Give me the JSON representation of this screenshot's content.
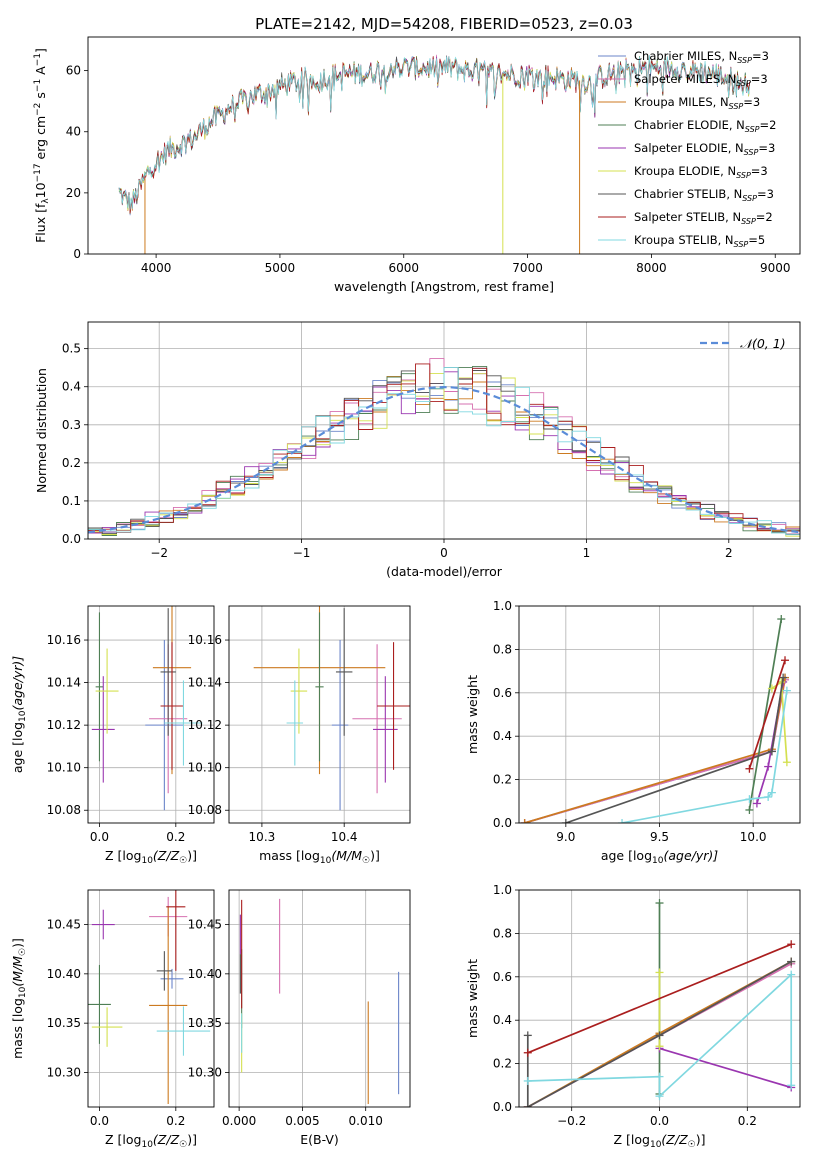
{
  "title": "PLATE=2142, MJD=54208, FIBERID=0523, z=0.03",
  "colors": {
    "Chabrier MILES": "#6b85c9",
    "Salpeter MILES": "#d670b0",
    "Kroupa MILES": "#cc7a20",
    "Chabrier ELODIE": "#4f7f55",
    "Salpeter ELODIE": "#9a36b0",
    "Kroupa ELODIE": "#d4e050",
    "Chabrier STELIB": "#555555",
    "Salpeter STELIB": "#aa1e1e",
    "Kroupa STELIB": "#80d8e0",
    "gauss": "#5a8cd8",
    "grid": "#b0b0b0"
  },
  "chart_data": [
    {
      "id": "spectrum",
      "type": "line",
      "title": "PLATE=2142, MJD=54208, FIBERID=0523, z=0.03",
      "xlabel": "wavelength [Angstrom, rest frame]",
      "ylabel_main": "Flux [f",
      "ylabel_sub": "λ",
      "ylabel_rest": "10",
      "ylabel_sup1": "−17",
      "ylabel_unit": " erg cm",
      "ylabel_sup2": "−2",
      "ylabel_unit2": " s",
      "ylabel_sup3": "−1",
      "ylabel_unit3": " A",
      "ylabel_sup4": "−1",
      "ylabel_end": "]",
      "xlim": [
        3450,
        9200
      ],
      "ylim": [
        0,
        71
      ],
      "xticks": [
        "4000",
        "5000",
        "6000",
        "7000",
        "8000",
        "9000"
      ],
      "xtick_values": [
        4000,
        5000,
        6000,
        7000,
        8000,
        9000
      ],
      "yticks": [
        "0",
        "20",
        "40",
        "60"
      ],
      "ytick_values": [
        0,
        20,
        40,
        60
      ],
      "grid": false,
      "legend_position": "top-right",
      "legend": [
        {
          "name": "Chabrier MILES",
          "n": "3"
        },
        {
          "name": "Salpeter MILES",
          "n": "3"
        },
        {
          "name": "Kroupa MILES",
          "n": "3"
        },
        {
          "name": "Chabrier ELODIE",
          "n": "2"
        },
        {
          "name": "Salpeter ELODIE",
          "n": "3"
        },
        {
          "name": "Kroupa ELODIE",
          "n": "3"
        },
        {
          "name": "Chabrier STELIB",
          "n": "3"
        },
        {
          "name": "Salpeter STELIB",
          "n": "2"
        },
        {
          "name": "Kroupa STELIB",
          "n": "5"
        }
      ],
      "legend_n_prefix": ", N",
      "legend_n_sub": "SSP",
      "legend_n_eq": "=",
      "envelope": {
        "x": [
          3700,
          3750,
          3800,
          3850,
          3900,
          3950,
          4000,
          4100,
          4200,
          4300,
          4400,
          4500,
          4600,
          4700,
          4800,
          4900,
          5000,
          5100,
          5200,
          5300,
          5400,
          5500,
          5600,
          5700,
          5800,
          5900,
          6000,
          6100,
          6200,
          6300,
          6400,
          6500,
          6600,
          6700,
          6800,
          6900,
          7000,
          7100,
          7200,
          7300,
          7400,
          7500,
          7600,
          7700,
          7800,
          7900,
          8000,
          8100,
          8200,
          8300,
          8400,
          8500,
          8600,
          8700,
          8800
        ],
        "y": [
          20,
          18,
          16,
          20,
          24,
          28,
          30,
          34,
          36,
          38,
          42,
          45,
          48,
          50,
          52,
          53,
          55,
          56,
          57,
          57,
          58,
          59,
          59,
          59,
          60,
          61,
          61,
          61,
          61,
          61,
          61,
          60,
          60,
          59,
          59,
          59,
          59,
          58,
          58,
          57,
          57,
          56,
          58,
          59,
          60,
          61,
          61,
          61,
          61,
          60,
          60,
          59,
          58,
          56,
          55
        ]
      },
      "dropouts": [
        {
          "x": 3910,
          "color_of": "Kroupa MILES"
        },
        {
          "x": 6800,
          "color_of": "Kroupa ELODIE"
        },
        {
          "x": 7420,
          "color_of": "Kroupa MILES"
        }
      ]
    },
    {
      "id": "residuals",
      "type": "histogram",
      "xlabel": "(data-model)/error",
      "ylabel": "Normed distribution",
      "xlim": [
        -2.5,
        2.5
      ],
      "ylim": [
        0,
        0.57
      ],
      "xticks": [
        "−2",
        "−1",
        "0",
        "1",
        "2"
      ],
      "xtick_values": [
        -2,
        -1,
        0,
        1,
        2
      ],
      "yticks": [
        "0.0",
        "0.1",
        "0.2",
        "0.3",
        "0.4",
        "0.5"
      ],
      "ytick_values": [
        0,
        0.1,
        0.2,
        0.3,
        0.4,
        0.5
      ],
      "grid": true,
      "legend_position": "top-right",
      "legend_label": "𝒩(0, 1)",
      "bins": 50
    },
    {
      "id": "age-vs-z",
      "type": "scatter",
      "xlabel": "Z [log",
      "xlabel_sub": "10",
      "xlabel_end": "(Z/Z",
      "xlabel_sun": "☉",
      "xlabel_close": ")]",
      "ylabel": "age  [log",
      "ylabel_sub": "10",
      "ylabel_end": "(age/yr)]",
      "xlim": [
        -0.03,
        0.3
      ],
      "ylim": [
        10.074,
        10.176
      ],
      "xticks": [
        "0.0",
        "0.2"
      ],
      "xtick_values": [
        0.0,
        0.2
      ],
      "yticks": [
        "10.08",
        "10.10",
        "10.12",
        "10.14",
        "10.16"
      ],
      "ytick_values": [
        10.08,
        10.1,
        10.12,
        10.14,
        10.16
      ],
      "grid": true,
      "points": [
        {
          "model": "Chabrier MILES",
          "x": 0.17,
          "y": 10.12,
          "xerr": 0.05,
          "yerr": 0.04
        },
        {
          "model": "Salpeter MILES",
          "x": 0.18,
          "y": 10.123,
          "xerr": 0.05,
          "yerr": 0.035
        },
        {
          "model": "Kroupa MILES",
          "x": 0.19,
          "y": 10.147,
          "xerr": 0.05,
          "yerr": 0.05
        },
        {
          "model": "Chabrier ELODIE",
          "x": 0.0,
          "y": 10.138,
          "xerr": 0.01,
          "yerr": 0.035
        },
        {
          "model": "Salpeter ELODIE",
          "x": 0.01,
          "y": 10.118,
          "xerr": 0.03,
          "yerr": 0.025
        },
        {
          "model": "Kroupa ELODIE",
          "x": 0.02,
          "y": 10.136,
          "xerr": 0.03,
          "yerr": 0.02
        },
        {
          "model": "Chabrier STELIB",
          "x": 0.18,
          "y": 10.145,
          "xerr": 0.02,
          "yerr": 0.03
        },
        {
          "model": "Salpeter STELIB",
          "x": 0.19,
          "y": 10.129,
          "xerr": 0.03,
          "yerr": 0.03
        },
        {
          "model": "Kroupa STELIB",
          "x": 0.22,
          "y": 10.121,
          "xerr": 0.05,
          "yerr": 0.02
        }
      ]
    },
    {
      "id": "age-vs-mass",
      "type": "scatter",
      "xlabel": "mass [log",
      "xlabel_sub": "10",
      "xlabel_end": "(M/M",
      "xlabel_sun": "☉",
      "xlabel_close": ")]",
      "xlim": [
        10.26,
        10.48
      ],
      "ylim": [
        10.074,
        10.176
      ],
      "xticks": [
        "10.3",
        "10.4"
      ],
      "xtick_values": [
        10.3,
        10.4
      ],
      "yticks": [
        "10.08",
        "10.10",
        "10.12",
        "10.14",
        "10.16"
      ],
      "ytick_values": [
        10.08,
        10.1,
        10.12,
        10.14,
        10.16
      ],
      "grid": true,
      "points": [
        {
          "model": "Chabrier MILES",
          "x": 10.395,
          "y": 10.12,
          "xerr": 0.01,
          "yerr": 0.04
        },
        {
          "model": "Salpeter MILES",
          "x": 10.44,
          "y": 10.123,
          "xerr": 0.03,
          "yerr": 0.035
        },
        {
          "model": "Kroupa MILES",
          "x": 10.37,
          "y": 10.147,
          "xerr": 0.08,
          "yerr": 0.05
        },
        {
          "model": "Chabrier ELODIE",
          "x": 10.37,
          "y": 10.138,
          "xerr": 0.005,
          "yerr": 0.035
        },
        {
          "model": "Salpeter ELODIE",
          "x": 10.45,
          "y": 10.118,
          "xerr": 0.015,
          "yerr": 0.025
        },
        {
          "model": "Kroupa ELODIE",
          "x": 10.345,
          "y": 10.136,
          "xerr": 0.01,
          "yerr": 0.02
        },
        {
          "model": "Chabrier STELIB",
          "x": 10.4,
          "y": 10.145,
          "xerr": 0.01,
          "yerr": 0.03
        },
        {
          "model": "Salpeter STELIB",
          "x": 10.46,
          "y": 10.129,
          "xerr": 0.02,
          "yerr": 0.03
        },
        {
          "model": "Kroupa STELIB",
          "x": 10.34,
          "y": 10.121,
          "xerr": 0.01,
          "yerr": 0.02
        }
      ]
    },
    {
      "id": "weight-vs-age",
      "type": "line",
      "xlabel": "age  [log",
      "xlabel_sub": "10",
      "xlabel_end": "(age/yr)]",
      "ylabel": "mass weight",
      "xlim": [
        8.75,
        10.25
      ],
      "ylim": [
        0,
        1.0
      ],
      "xticks": [
        "9.0",
        "9.5",
        "10.0"
      ],
      "xtick_values": [
        9.0,
        9.5,
        10.0
      ],
      "yticks": [
        "0.0",
        "0.2",
        "0.4",
        "0.6",
        "0.8",
        "1.0"
      ],
      "ytick_values": [
        0,
        0.2,
        0.4,
        0.6,
        0.8,
        1.0
      ],
      "grid": true,
      "series": [
        {
          "model": "Chabrier MILES",
          "x": [
            8.78,
            10.1,
            10.17
          ],
          "y": [
            0.0,
            0.33,
            0.67
          ]
        },
        {
          "model": "Salpeter MILES",
          "x": [
            8.78,
            10.1,
            10.17
          ],
          "y": [
            0.0,
            0.33,
            0.66
          ]
        },
        {
          "model": "Kroupa MILES",
          "x": [
            8.78,
            10.1,
            10.17
          ],
          "y": [
            0.0,
            0.34,
            0.67
          ]
        },
        {
          "model": "Chabrier ELODIE",
          "x": [
            9.98,
            10.15
          ],
          "y": [
            0.06,
            0.94
          ]
        },
        {
          "model": "Salpeter ELODIE",
          "x": [
            10.02,
            10.08,
            10.16
          ],
          "y": [
            0.09,
            0.26,
            0.65
          ]
        },
        {
          "model": "Kroupa ELODIE",
          "x": [
            10.1,
            10.15,
            10.18
          ],
          "y": [
            0.62,
            0.65,
            0.28
          ]
        },
        {
          "model": "Chabrier STELIB",
          "x": [
            9.0,
            10.1,
            10.16
          ],
          "y": [
            0.0,
            0.33,
            0.67
          ]
        },
        {
          "model": "Salpeter STELIB",
          "x": [
            9.98,
            10.17
          ],
          "y": [
            0.25,
            0.75
          ]
        },
        {
          "model": "Kroupa STELIB",
          "x": [
            9.3,
            9.98,
            10.08,
            10.1,
            10.18
          ],
          "y": [
            0.0,
            0.11,
            0.12,
            0.14,
            0.61
          ]
        }
      ]
    },
    {
      "id": "mass-vs-z",
      "type": "scatter",
      "xlabel": "Z [log",
      "xlabel_sub": "10",
      "xlabel_end": "(Z/Z",
      "xlabel_sun": "☉",
      "xlabel_close": ")]",
      "ylabel": "mass [log",
      "ylabel_sub": "10",
      "ylabel_end": "(M/M",
      "ylabel_sun": "☉",
      "ylabel_close": ")]",
      "xlim": [
        -0.03,
        0.3
      ],
      "ylim": [
        10.265,
        10.485
      ],
      "xticks": [
        "0.0",
        "0.2"
      ],
      "xtick_values": [
        0.0,
        0.2
      ],
      "yticks": [
        "10.30",
        "10.35",
        "10.40",
        "10.45"
      ],
      "ytick_values": [
        10.3,
        10.35,
        10.4,
        10.45
      ],
      "grid": true,
      "points": [
        {
          "model": "Chabrier MILES",
          "x": 0.19,
          "y": 10.395,
          "xerr": 0.03,
          "yerr": 0.01
        },
        {
          "model": "Salpeter MILES",
          "x": 0.18,
          "y": 10.458,
          "xerr": 0.05,
          "yerr": 0.02
        },
        {
          "model": "Kroupa MILES",
          "x": 0.18,
          "y": 10.368,
          "xerr": 0.05,
          "yerr": 0.1
        },
        {
          "model": "Chabrier ELODIE",
          "x": 0.0,
          "y": 10.369,
          "xerr": 0.03,
          "yerr": 0.04
        },
        {
          "model": "Salpeter ELODIE",
          "x": 0.01,
          "y": 10.45,
          "xerr": 0.03,
          "yerr": 0.015
        },
        {
          "model": "Kroupa ELODIE",
          "x": 0.02,
          "y": 10.346,
          "xerr": 0.04,
          "yerr": 0.02
        },
        {
          "model": "Chabrier STELIB",
          "x": 0.17,
          "y": 10.403,
          "xerr": 0.02,
          "yerr": 0.02
        },
        {
          "model": "Salpeter STELIB",
          "x": 0.2,
          "y": 10.468,
          "xerr": 0.025,
          "yerr": 0.065
        },
        {
          "model": "Kroupa STELIB",
          "x": 0.22,
          "y": 10.342,
          "xerr": 0.07,
          "yerr": 0.025
        }
      ]
    },
    {
      "id": "mass-vs-ebv",
      "type": "scatter",
      "xlabel": "E(B-V)",
      "xlim": [
        -0.0008,
        0.0135
      ],
      "ylim": [
        10.265,
        10.485
      ],
      "xticks": [
        "0.000",
        "0.005",
        "0.010"
      ],
      "xtick_values": [
        0.0,
        0.005,
        0.01
      ],
      "yticks": [
        "10.30",
        "10.35",
        "10.40",
        "10.45"
      ],
      "ytick_values": [
        10.3,
        10.35,
        10.4,
        10.45
      ],
      "grid": true,
      "points": [
        {
          "model": "Chabrier MILES",
          "x": 0.0126,
          "y": 10.34,
          "xerr": 0.0,
          "yerr": 0.062
        },
        {
          "model": "Salpeter MILES",
          "x": 0.0032,
          "y": 10.428,
          "xerr": 0.0,
          "yerr": 0.048
        },
        {
          "model": "Kroupa MILES",
          "x": 0.0102,
          "y": 10.32,
          "xerr": 0.0,
          "yerr": 0.052
        },
        {
          "model": "Chabrier ELODIE",
          "x": 0.0002,
          "y": 10.385,
          "xerr": 0.0,
          "yerr": 0.04
        },
        {
          "model": "Salpeter ELODIE",
          "x": 0.0001,
          "y": 10.44,
          "xerr": 0.0,
          "yerr": 0.02
        },
        {
          "model": "Kroupa ELODIE",
          "x": 0.0002,
          "y": 10.33,
          "xerr": 0.0,
          "yerr": 0.03
        },
        {
          "model": "Chabrier STELIB",
          "x": 0.0001,
          "y": 10.4,
          "xerr": 0.0,
          "yerr": 0.02
        },
        {
          "model": "Salpeter STELIB",
          "x": 0.0002,
          "y": 10.42,
          "xerr": 0.0,
          "yerr": 0.055
        },
        {
          "model": "Kroupa STELIB",
          "x": 0.0002,
          "y": 10.34,
          "xerr": 0.0,
          "yerr": 0.02
        }
      ]
    },
    {
      "id": "weight-vs-z",
      "type": "line",
      "xlabel": "Z [log",
      "xlabel_sub": "10",
      "xlabel_end": "(Z/Z",
      "xlabel_sun": "☉",
      "xlabel_close": ")]",
      "ylabel": "mass weight",
      "xlim": [
        -0.32,
        0.32
      ],
      "ylim": [
        0,
        1.0
      ],
      "xticks": [
        "−0.2",
        "0.0",
        "0.2"
      ],
      "xtick_values": [
        -0.2,
        0.0,
        0.2
      ],
      "yticks": [
        "0.0",
        "0.2",
        "0.4",
        "0.6",
        "0.8",
        "1.0"
      ],
      "ytick_values": [
        0,
        0.2,
        0.4,
        0.6,
        0.8,
        1.0
      ],
      "grid": true,
      "series": [
        {
          "model": "Chabrier MILES",
          "x": [
            -0.3,
            0.0,
            0.3
          ],
          "y": [
            0.0,
            0.33,
            0.67
          ]
        },
        {
          "model": "Salpeter MILES",
          "x": [
            -0.3,
            0.0,
            0.3
          ],
          "y": [
            0.0,
            0.33,
            0.66
          ]
        },
        {
          "model": "Kroupa MILES",
          "x": [
            -0.3,
            0.0,
            0.3
          ],
          "y": [
            0.0,
            0.34,
            0.67
          ]
        },
        {
          "model": "Chabrier ELODIE",
          "x": [
            0.0,
            0.0
          ],
          "y": [
            0.06,
            0.94
          ]
        },
        {
          "model": "Salpeter ELODIE",
          "x": [
            0.0,
            0.3
          ],
          "y": [
            0.27,
            0.09
          ]
        },
        {
          "model": "Kroupa ELODIE",
          "x": [
            0.0,
            0.0
          ],
          "y": [
            0.28,
            0.62
          ]
        },
        {
          "model": "Chabrier STELIB",
          "x": [
            -0.3,
            -0.3,
            0.0,
            0.3
          ],
          "y": [
            0.33,
            0.0,
            0.33,
            0.67
          ]
        },
        {
          "model": "Salpeter STELIB",
          "x": [
            -0.3,
            0.3
          ],
          "y": [
            0.25,
            0.75
          ]
        },
        {
          "model": "Kroupa STELIB",
          "x": [
            -0.3,
            0.0,
            0.0,
            0.3,
            0.3
          ],
          "y": [
            0.12,
            0.14,
            0.05,
            0.61,
            0.1
          ]
        }
      ]
    }
  ]
}
